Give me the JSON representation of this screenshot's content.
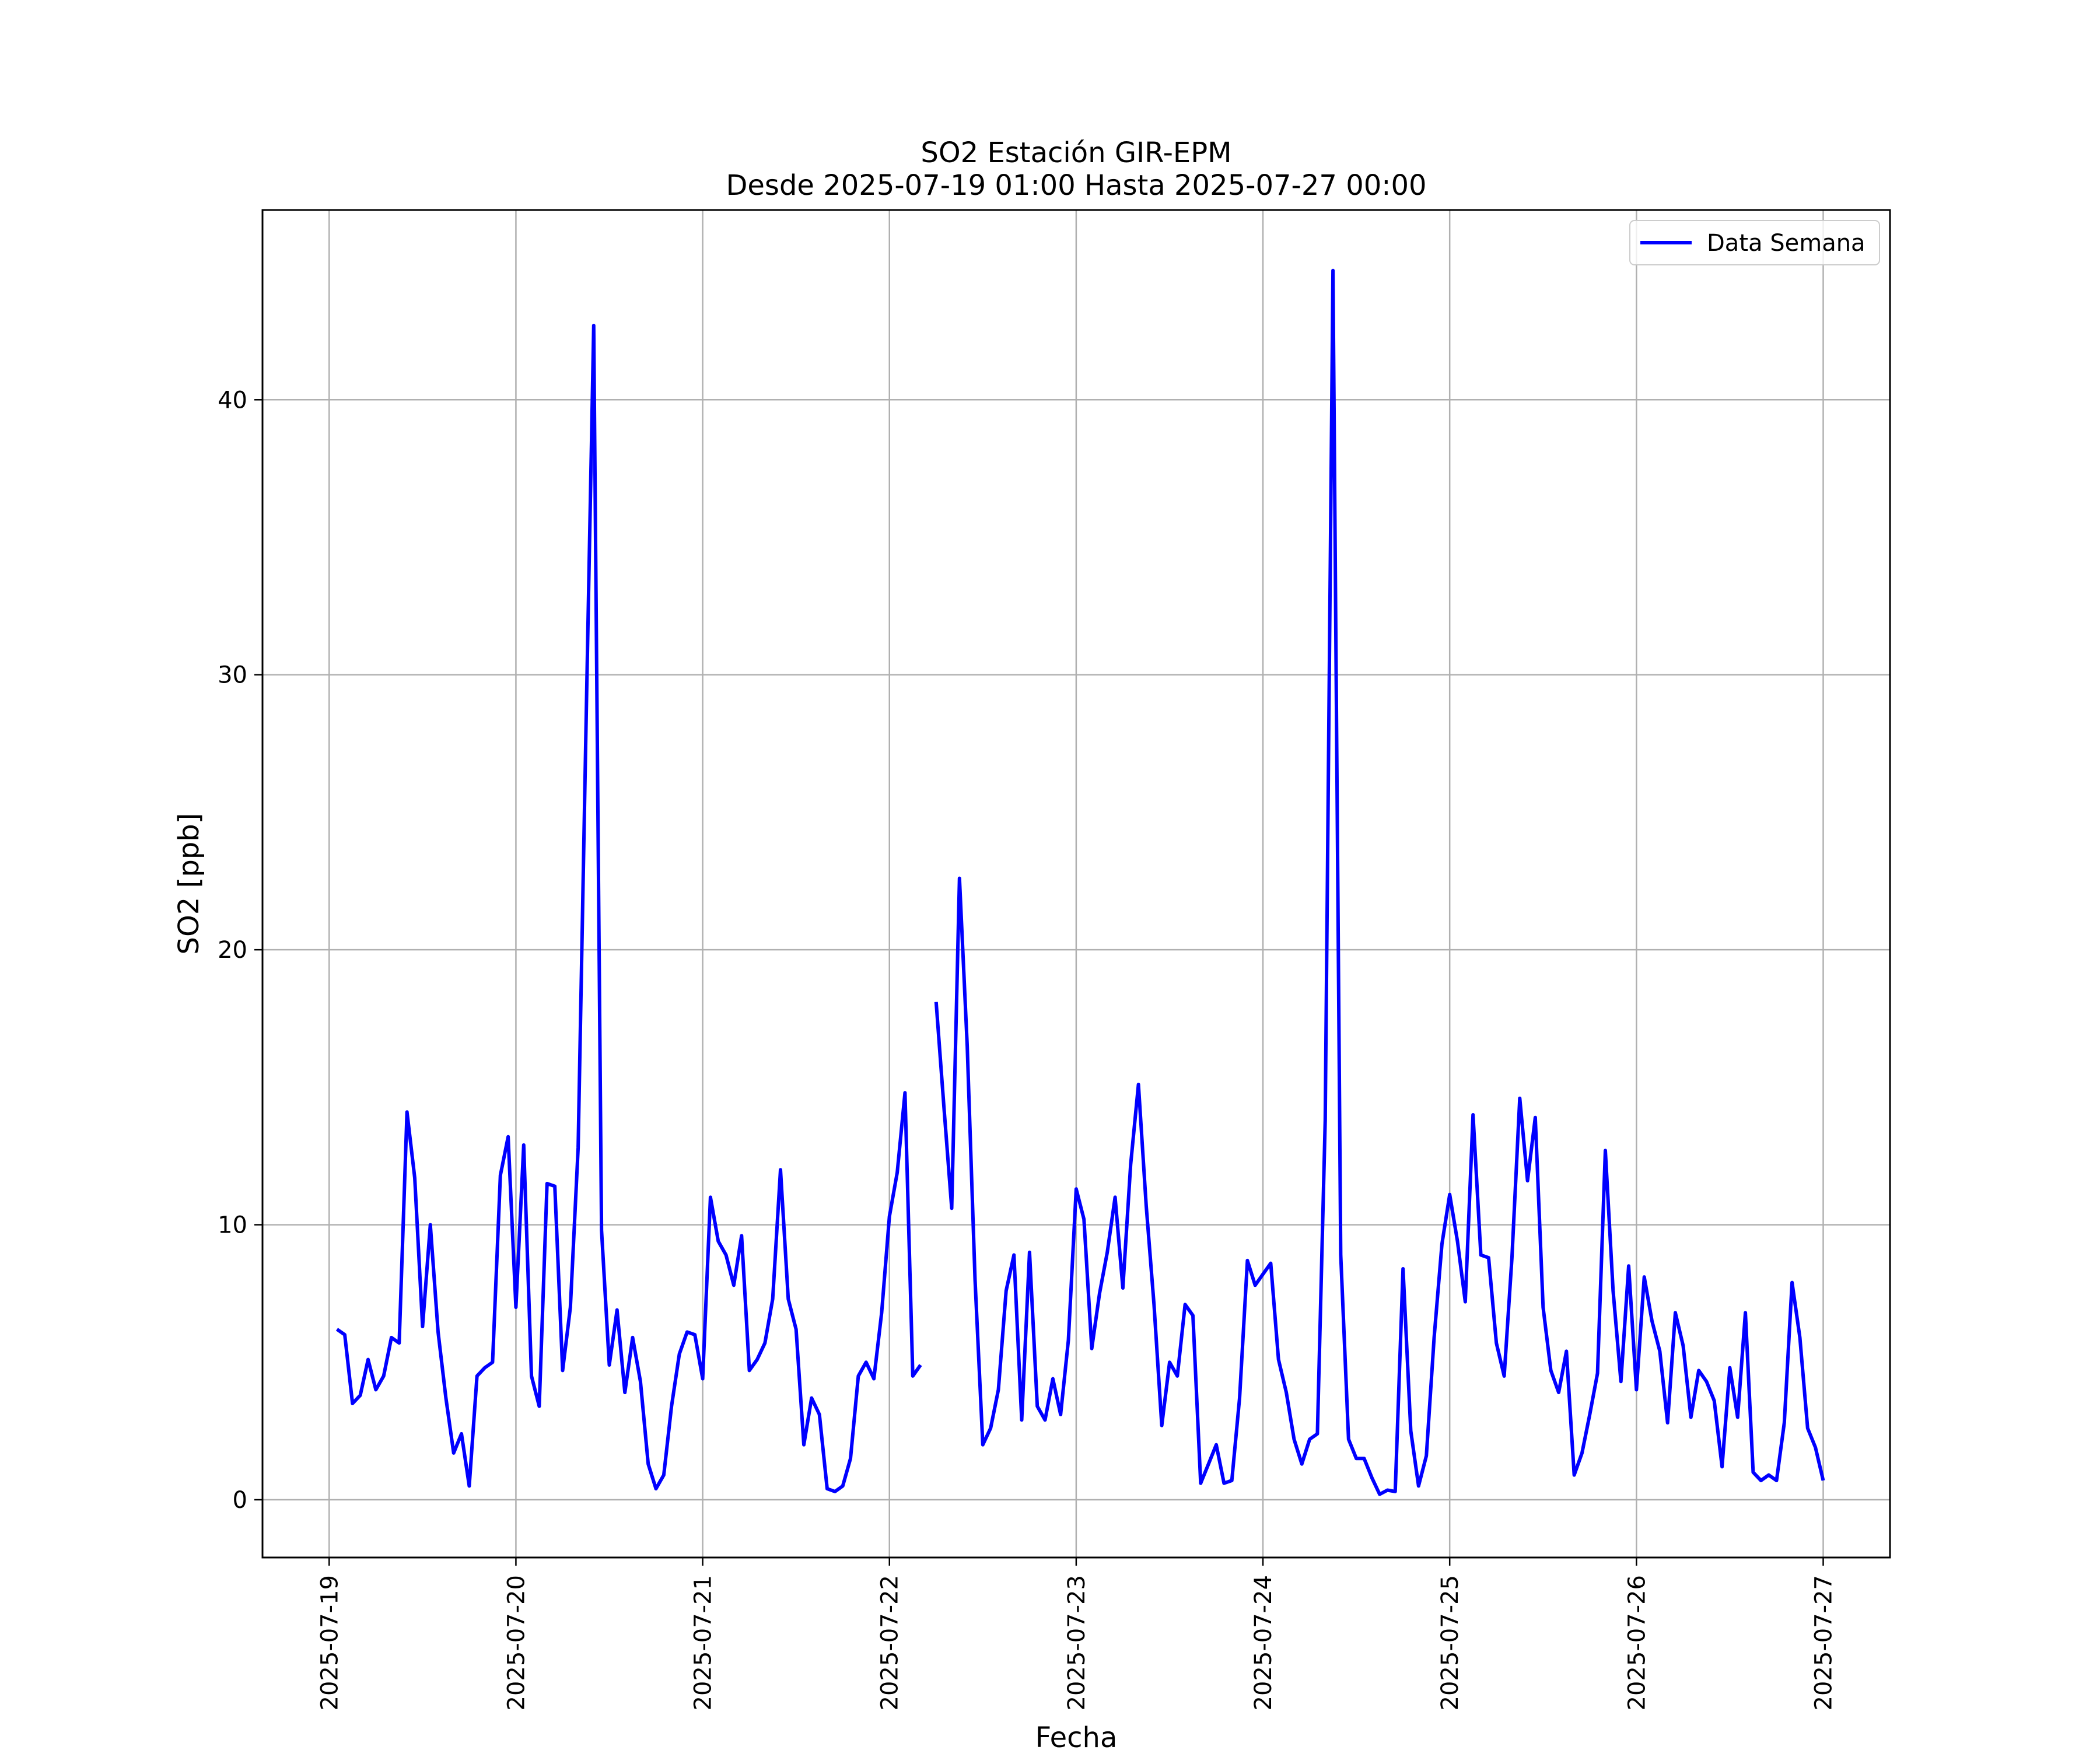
{
  "chart_data": {
    "type": "line",
    "title": "SO2 Estación GIR-EPM",
    "subtitle": "Desde 2025-07-19 01:00 Hasta 2025-07-27 00:00",
    "xlabel": "Fecha",
    "ylabel": "SO2 [ppb]",
    "x_tick_labels": [
      "2025-07-19",
      "2025-07-20",
      "2025-07-21",
      "2025-07-22",
      "2025-07-23",
      "2025-07-24",
      "2025-07-25",
      "2025-07-26",
      "2025-07-27"
    ],
    "y_ticks": [
      0,
      10,
      20,
      30,
      40
    ],
    "xlim": [
      "2025-07-18 15:26",
      "2025-07-27 08:35"
    ],
    "ylim": [
      -2.1,
      46.9
    ],
    "grid": true,
    "legend_position": "top-right",
    "color": "#0000ff",
    "series": [
      {
        "name": "Data Semana",
        "segments": [
          {
            "start": "2025-07-19 01:00",
            "step_hours": 1,
            "values": [
              6.2,
              6.0,
              3.5,
              3.8,
              5.1,
              4.0,
              4.5,
              5.9,
              5.7,
              14.1,
              11.7,
              6.3,
              10.0,
              6.1,
              3.7,
              1.7,
              2.4,
              0.5,
              4.5,
              4.8,
              5.0,
              11.8,
              13.2,
              7.0,
              12.9,
              4.5,
              3.4,
              11.5,
              11.4,
              4.7,
              7.0,
              12.8,
              28.0,
              42.7,
              9.8,
              4.9,
              6.9,
              3.9,
              5.9,
              4.3,
              1.3,
              0.4,
              0.9,
              3.4,
              5.3,
              6.1,
              6.0,
              4.4,
              11.0,
              9.4,
              8.9,
              7.8,
              9.6,
              4.7,
              5.1,
              5.7,
              7.3,
              12.0,
              7.3,
              6.2,
              2.0,
              3.7,
              3.1,
              0.4,
              0.3,
              0.5,
              1.5,
              4.5,
              5.0,
              4.4,
              6.8,
              10.3,
              11.9,
              14.8,
              4.5,
              4.9
            ]
          },
          {
            "start": "2025-07-22 06:00",
            "step_hours": 1,
            "values": [
              18.1,
              14.3,
              10.6,
              22.6,
              16.5,
              8.0,
              2.0,
              2.6,
              4.0,
              7.6,
              8.9,
              2.9,
              9.0,
              3.4,
              2.9,
              4.4,
              3.1,
              5.8,
              11.3,
              10.2,
              5.5,
              7.5,
              9.0,
              11.0,
              7.7,
              12.2,
              15.1,
              10.7,
              7.1,
              2.7,
              5.0,
              4.5,
              7.1,
              6.7,
              0.6,
              1.3,
              2.0,
              0.6,
              0.7,
              3.7,
              8.7,
              7.8,
              8.2,
              8.6,
              5.1,
              3.9,
              2.2,
              1.3,
              2.2,
              2.4,
              13.8,
              44.7,
              8.9,
              2.2,
              1.5,
              1.5,
              0.8,
              0.2,
              0.35,
              0.3,
              8.4,
              2.5,
              0.5,
              1.6,
              5.9,
              9.3,
              11.1,
              9.4,
              7.2,
              14.0,
              8.9,
              8.8,
              5.7,
              4.5,
              8.8,
              14.6,
              11.6,
              13.9,
              7.0,
              4.7,
              3.9,
              5.4,
              0.9,
              1.7,
              3.1,
              4.6,
              12.7,
              7.6,
              4.3,
              8.5,
              4.0,
              8.1,
              6.5,
              5.4,
              2.8,
              6.8,
              5.6,
              3.0,
              4.7,
              4.3,
              3.6,
              1.2,
              4.8,
              3.0,
              6.8,
              1.0,
              0.7,
              0.9,
              0.7,
              2.8,
              7.9,
              5.9,
              2.6,
              1.9,
              0.7
            ]
          }
        ]
      }
    ]
  }
}
